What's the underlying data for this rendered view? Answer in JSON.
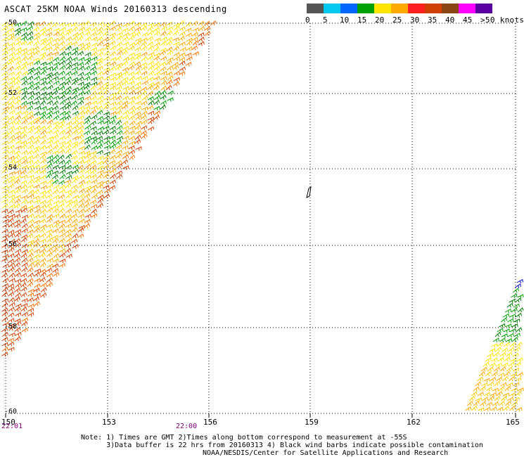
{
  "title": "ASCAT 25KM NOAA Winds 20160313 descending",
  "legend": {
    "colors": [
      "#555555",
      "#00c8f0",
      "#0064ff",
      "#00a000",
      "#ffe600",
      "#ffaa00",
      "#ff2020",
      "#d04000",
      "#8b4513",
      "#ff00ff",
      "#5a00a0"
    ],
    "labels": [
      "0",
      "5",
      "10",
      "15",
      "20",
      "25",
      "30",
      "35",
      "40",
      "45",
      ">50 knots"
    ],
    "unit": "knots"
  },
  "latitudes": [
    "-50",
    "-52",
    "-54",
    "-56",
    "-58",
    "-60"
  ],
  "longitudes": [
    "150",
    "153",
    "156",
    "159",
    "162",
    "165"
  ],
  "times": [
    "22:01",
    "22:00"
  ],
  "notes": {
    "line1": "Note: 1) Times are GMT 2)Times along bottom correspond to measurement at -55S",
    "line2": "3)Data buffer is 22 hrs from 20160313 4) Black wind barbs indicate possible contamination",
    "credit": "NOAA/NESDIS/Center for Satellite Applications and Research"
  }
}
